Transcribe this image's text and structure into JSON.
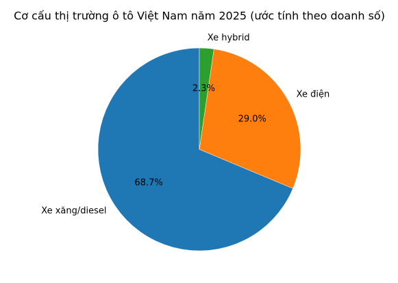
{
  "chart_data": {
    "type": "pie",
    "title": "Cơ cấu thị trường ô tô Việt Nam năm 2025 (ước tính theo doanh số)",
    "categories": [
      "Xe xăng/diesel",
      "Xe điện",
      "Xe hybrid"
    ],
    "values": [
      68.7,
      29.0,
      2.3
    ],
    "value_labels": [
      "68.7%",
      "29.0%",
      "2.3%"
    ],
    "colors": [
      "#1f77b4",
      "#ff7f0e",
      "#2ca02c"
    ],
    "start_angle": 90
  }
}
